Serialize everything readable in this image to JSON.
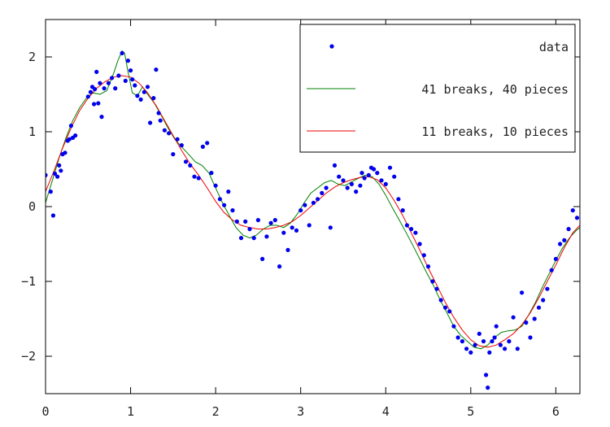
{
  "chart_data": {
    "type": "scatter",
    "title": "",
    "xlabel": "",
    "ylabel": "",
    "xlim": [
      0,
      6.2832
    ],
    "ylim": [
      -2.5,
      2.5
    ],
    "grid": false,
    "legend_position": "top-right",
    "x_ticks": [
      0,
      1,
      2,
      3,
      4,
      5,
      6
    ],
    "y_ticks": [
      -2,
      -1,
      0,
      1,
      2
    ],
    "x_tick_labels": [
      "0",
      "1",
      "2",
      "3",
      "4",
      "5",
      "6"
    ],
    "y_tick_labels": [
      "−2",
      "−1",
      "0",
      "1",
      "2"
    ],
    "colors": {
      "data": "#0000ee",
      "fit41": "#008000",
      "fit11": "#ee0000"
    },
    "series": [
      {
        "name": "data",
        "kind": "points",
        "color": "#0000ee",
        "x": [
          0.0,
          0.06,
          0.09,
          0.11,
          0.14,
          0.16,
          0.18,
          0.2,
          0.23,
          0.26,
          0.28,
          0.3,
          0.32,
          0.35,
          0.5,
          0.53,
          0.55,
          0.57,
          0.58,
          0.6,
          0.62,
          0.64,
          0.66,
          0.69,
          0.74,
          0.78,
          0.82,
          0.86,
          0.9,
          0.94,
          0.97,
          1.0,
          1.02,
          1.05,
          1.08,
          1.12,
          1.16,
          1.2,
          1.23,
          1.27,
          1.3,
          1.33,
          1.35,
          1.4,
          1.45,
          1.5,
          1.55,
          1.6,
          1.65,
          1.7,
          1.75,
          1.8,
          1.85,
          1.9,
          1.95,
          2.0,
          2.05,
          2.1,
          2.15,
          2.2,
          2.25,
          2.3,
          2.35,
          2.4,
          2.45,
          2.5,
          2.55,
          2.6,
          2.65,
          2.7,
          2.75,
          2.8,
          2.85,
          2.9,
          2.95,
          3.0,
          3.05,
          3.1,
          3.15,
          3.2,
          3.25,
          3.3,
          3.35,
          3.4,
          3.45,
          3.5,
          3.55,
          3.6,
          3.65,
          3.7,
          3.72,
          3.75,
          3.8,
          3.83,
          3.86,
          3.9,
          3.95,
          4.0,
          4.05,
          4.1,
          4.15,
          4.2,
          4.25,
          4.3,
          4.35,
          4.4,
          4.45,
          4.5,
          4.55,
          4.6,
          4.65,
          4.7,
          4.75,
          4.8,
          4.85,
          4.9,
          4.95,
          5.0,
          5.05,
          5.1,
          5.15,
          5.18,
          5.2,
          5.22,
          5.25,
          5.28,
          5.3,
          5.35,
          5.4,
          5.45,
          5.5,
          5.55,
          5.6,
          5.65,
          5.7,
          5.75,
          5.8,
          5.85,
          5.9,
          5.95,
          6.0,
          6.05,
          6.1,
          6.15,
          6.2,
          6.25
        ],
        "y": [
          0.42,
          0.2,
          -0.12,
          0.44,
          0.4,
          0.55,
          0.48,
          0.7,
          0.72,
          0.88,
          0.9,
          1.08,
          0.92,
          0.95,
          1.47,
          1.53,
          1.6,
          1.37,
          1.57,
          1.8,
          1.38,
          1.65,
          1.2,
          1.58,
          1.65,
          1.72,
          1.58,
          1.75,
          2.05,
          1.68,
          1.95,
          1.82,
          1.7,
          1.62,
          1.48,
          1.43,
          1.53,
          1.6,
          1.12,
          1.45,
          1.83,
          1.25,
          1.15,
          1.02,
          0.98,
          0.7,
          0.9,
          0.82,
          0.6,
          0.55,
          0.4,
          0.38,
          0.8,
          0.85,
          0.45,
          0.28,
          0.1,
          0.02,
          0.2,
          -0.05,
          -0.2,
          -0.42,
          -0.2,
          -0.3,
          -0.42,
          -0.18,
          -0.7,
          -0.4,
          -0.22,
          -0.18,
          -0.8,
          -0.35,
          -0.58,
          -0.28,
          -0.32,
          -0.05,
          0.02,
          -0.25,
          0.05,
          0.1,
          0.18,
          0.25,
          -0.28,
          0.55,
          0.4,
          0.35,
          0.25,
          0.3,
          0.2,
          0.28,
          0.45,
          0.38,
          0.42,
          0.52,
          0.5,
          0.45,
          0.35,
          0.3,
          0.52,
          0.4,
          0.1,
          -0.05,
          -0.25,
          -0.3,
          -0.35,
          -0.5,
          -0.65,
          -0.8,
          -1.0,
          -1.1,
          -1.25,
          -1.35,
          -1.4,
          -1.6,
          -1.75,
          -1.8,
          -1.9,
          -1.95,
          -1.85,
          -1.7,
          -1.8,
          -2.25,
          -2.42,
          -1.95,
          -1.8,
          -1.75,
          -1.6,
          -1.85,
          -1.9,
          -1.8,
          -1.48,
          -1.9,
          -1.15,
          -1.55,
          -1.75,
          -1.5,
          -1.35,
          -1.25,
          -1.1,
          -0.85,
          -0.7,
          -0.5,
          -0.45,
          -0.3,
          -0.05,
          -0.15
        ]
      },
      {
        "name": "41 breaks, 40 pieces",
        "kind": "line",
        "color": "#008000",
        "x": [
          0.0,
          0.08,
          0.16,
          0.24,
          0.32,
          0.4,
          0.48,
          0.56,
          0.64,
          0.72,
          0.8,
          0.85,
          0.9,
          0.93,
          0.97,
          1.02,
          1.08,
          1.14,
          1.2,
          1.28,
          1.36,
          1.44,
          1.52,
          1.6,
          1.68,
          1.76,
          1.84,
          1.92,
          2.0,
          2.08,
          2.16,
          2.24,
          2.32,
          2.4,
          2.48,
          2.56,
          2.64,
          2.72,
          2.8,
          2.88,
          2.96,
          3.04,
          3.12,
          3.2,
          3.28,
          3.36,
          3.44,
          3.52,
          3.6,
          3.68,
          3.76,
          3.84,
          3.92,
          4.0,
          4.08,
          4.16,
          4.24,
          4.32,
          4.4,
          4.48,
          4.56,
          4.64,
          4.72,
          4.8,
          4.88,
          4.96,
          5.04,
          5.12,
          5.2,
          5.28,
          5.36,
          5.44,
          5.52,
          5.6,
          5.68,
          5.76,
          5.84,
          5.92,
          6.0,
          6.08,
          6.16,
          6.24,
          6.2832
        ],
        "y": [
          0.05,
          0.35,
          0.65,
          0.92,
          1.15,
          1.32,
          1.45,
          1.52,
          1.5,
          1.55,
          1.78,
          1.95,
          2.08,
          2.05,
          1.8,
          1.52,
          1.48,
          1.6,
          1.5,
          1.38,
          1.22,
          1.05,
          0.9,
          0.8,
          0.7,
          0.6,
          0.55,
          0.45,
          0.25,
          0.05,
          -0.12,
          -0.28,
          -0.38,
          -0.42,
          -0.38,
          -0.3,
          -0.25,
          -0.25,
          -0.28,
          -0.22,
          -0.1,
          0.05,
          0.18,
          0.25,
          0.32,
          0.35,
          0.3,
          0.28,
          0.33,
          0.38,
          0.42,
          0.4,
          0.3,
          0.15,
          -0.02,
          -0.18,
          -0.35,
          -0.52,
          -0.7,
          -0.88,
          -1.05,
          -1.25,
          -1.42,
          -1.6,
          -1.72,
          -1.8,
          -1.88,
          -1.9,
          -1.85,
          -1.75,
          -1.68,
          -1.66,
          -1.65,
          -1.6,
          -1.45,
          -1.28,
          -1.08,
          -0.9,
          -0.72,
          -0.55,
          -0.42,
          -0.32,
          -0.28
        ]
      },
      {
        "name": "11 breaks, 10 pieces",
        "kind": "line",
        "color": "#ee0000",
        "x": [
          0.0,
          0.1,
          0.2,
          0.3,
          0.4,
          0.5,
          0.6,
          0.7,
          0.8,
          0.9,
          1.0,
          1.1,
          1.2,
          1.3,
          1.4,
          1.5,
          1.6,
          1.7,
          1.8,
          1.9,
          2.0,
          2.1,
          2.2,
          2.3,
          2.4,
          2.5,
          2.6,
          2.7,
          2.8,
          2.9,
          3.0,
          3.1,
          3.2,
          3.3,
          3.4,
          3.5,
          3.6,
          3.7,
          3.8,
          3.9,
          4.0,
          4.1,
          4.2,
          4.3,
          4.4,
          4.5,
          4.6,
          4.7,
          4.8,
          4.9,
          5.0,
          5.1,
          5.2,
          5.3,
          5.4,
          5.5,
          5.6,
          5.7,
          5.8,
          5.9,
          6.0,
          6.1,
          6.2,
          6.2832
        ],
        "y": [
          0.2,
          0.48,
          0.78,
          1.05,
          1.28,
          1.45,
          1.58,
          1.67,
          1.73,
          1.75,
          1.73,
          1.65,
          1.52,
          1.35,
          1.15,
          0.95,
          0.75,
          0.57,
          0.42,
          0.25,
          0.07,
          -0.08,
          -0.18,
          -0.25,
          -0.28,
          -0.3,
          -0.3,
          -0.28,
          -0.25,
          -0.2,
          -0.12,
          -0.02,
          0.08,
          0.18,
          0.26,
          0.32,
          0.36,
          0.39,
          0.4,
          0.36,
          0.25,
          0.08,
          -0.12,
          -0.35,
          -0.58,
          -0.82,
          -1.05,
          -1.28,
          -1.48,
          -1.65,
          -1.78,
          -1.86,
          -1.88,
          -1.85,
          -1.78,
          -1.7,
          -1.58,
          -1.42,
          -1.22,
          -1.0,
          -0.78,
          -0.55,
          -0.35,
          -0.25
        ]
      }
    ]
  }
}
